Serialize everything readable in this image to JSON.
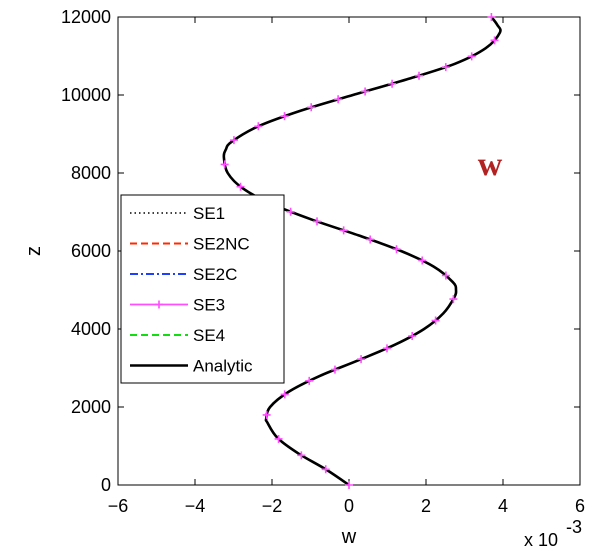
{
  "chart_data": {
    "type": "line",
    "title": "",
    "xlabel": "w",
    "ylabel": "z",
    "x_scale_label": "x 10",
    "x_scale_exponent": "-3",
    "xlim": [
      -6,
      6
    ],
    "ylim": [
      0,
      12000
    ],
    "xticks": [
      "−6",
      "−4",
      "−2",
      "0",
      "2",
      "4",
      "6"
    ],
    "yticks": [
      "0",
      "2000",
      "4000",
      "6000",
      "8000",
      "10000",
      "12000"
    ],
    "grid": false,
    "legend_position": "middle-left",
    "annotation": {
      "text": "w",
      "color": "#b22222"
    },
    "profile": {
      "z": [
        0,
        400,
        800,
        1200,
        1600,
        1700,
        2000,
        2400,
        2800,
        3200,
        3600,
        4000,
        4400,
        4800,
        5000,
        5200,
        5600,
        6000,
        6400,
        6800,
        7200,
        7600,
        8000,
        8400,
        8600,
        8800,
        9200,
        9600,
        10000,
        10400,
        10800,
        11200,
        11600,
        11800,
        12000
      ],
      "w": [
        0.0,
        -0.6,
        -1.3,
        -1.85,
        -2.12,
        -2.15,
        -2.05,
        -1.55,
        -0.75,
        0.25,
        1.2,
        1.95,
        2.45,
        2.73,
        2.78,
        2.7,
        2.2,
        1.35,
        0.25,
        -0.95,
        -2.0,
        -2.75,
        -3.15,
        -3.25,
        -3.2,
        -3.05,
        -2.35,
        -1.25,
        0.1,
        1.5,
        2.75,
        3.55,
        3.92,
        3.85,
        3.7
      ]
    },
    "series": [
      {
        "name": "SE1",
        "color": "#000000",
        "style": "dotted"
      },
      {
        "name": "SE2NC",
        "color": "#ff2a00",
        "style": "dashed"
      },
      {
        "name": "SE2C",
        "color": "#1f3fff",
        "style": "dashdot"
      },
      {
        "name": "SE3",
        "color": "#ff4dff",
        "style": "solid-plus"
      },
      {
        "name": "SE4",
        "color": "#11dd11",
        "style": "dashed"
      },
      {
        "name": "Analytic",
        "color": "#000000",
        "style": "solid"
      }
    ]
  }
}
